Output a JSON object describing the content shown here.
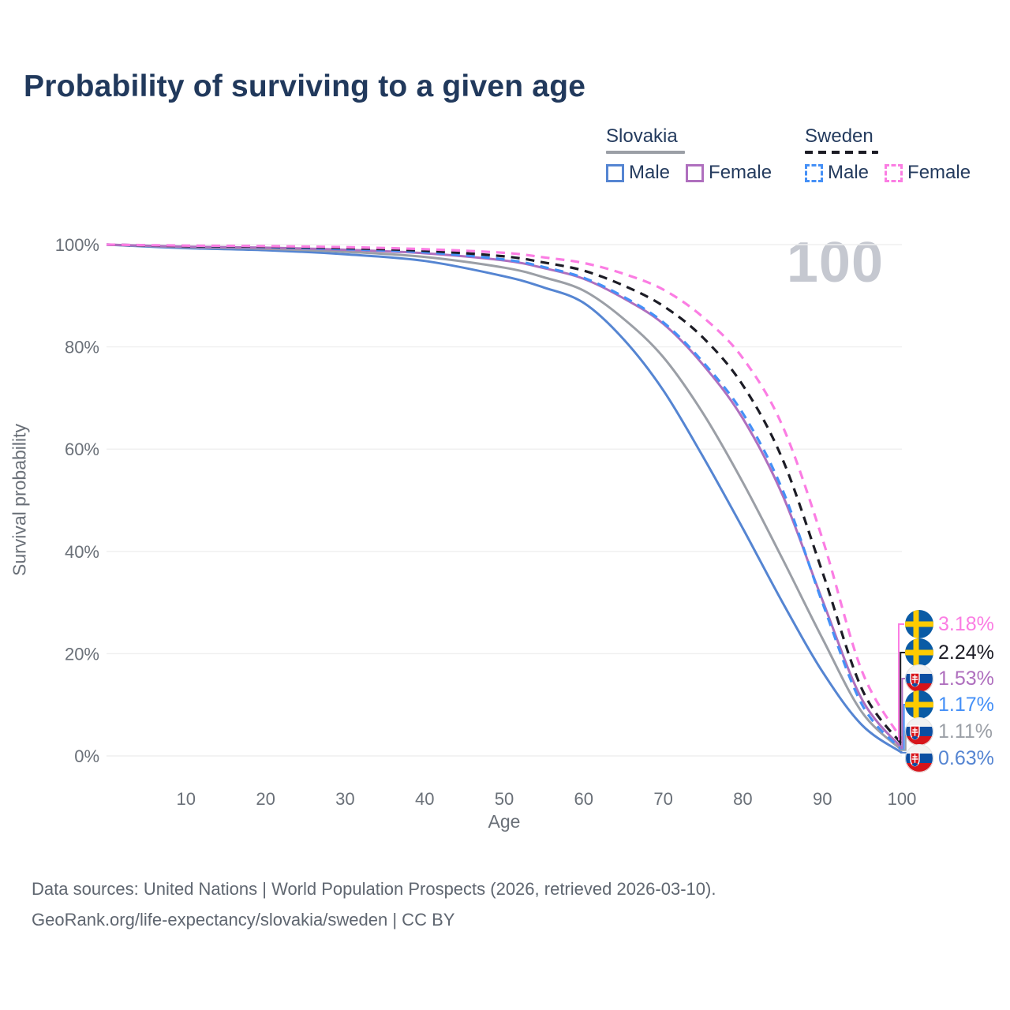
{
  "title": "Probability of surviving to a given age",
  "watermark": "100",
  "legend": {
    "groups": [
      {
        "country": "Slovakia",
        "underline": {
          "color": "#9B9FA6",
          "dashed": false
        },
        "items": [
          {
            "label": "Male",
            "color": "#5585D2",
            "dashed": false
          },
          {
            "label": "Female",
            "color": "#AF6FBE",
            "dashed": false
          }
        ]
      },
      {
        "country": "Sweden",
        "underline": {
          "color": "#1C1C25",
          "dashed": true
        },
        "items": [
          {
            "label": "Male",
            "color": "#4590F7",
            "dashed": true
          },
          {
            "label": "Female",
            "color": "#FB7DE3",
            "dashed": true
          }
        ]
      }
    ]
  },
  "chart_data": {
    "type": "line",
    "title": "Probability of surviving to a given age",
    "xlabel": "Age",
    "ylabel": "Survival probability",
    "xlim": [
      0,
      100
    ],
    "ylim": [
      0,
      100
    ],
    "grid": "horizontal",
    "x_ticks": [
      10,
      20,
      30,
      40,
      50,
      60,
      70,
      80,
      90,
      100
    ],
    "y_ticks": [
      0,
      20,
      40,
      60,
      80,
      100
    ],
    "y_tick_labels": [
      "0%",
      "20%",
      "40%",
      "60%",
      "80%",
      "100%"
    ],
    "x": [
      0,
      10,
      20,
      30,
      40,
      50,
      55,
      60,
      65,
      70,
      75,
      80,
      85,
      90,
      95,
      100
    ],
    "series": [
      {
        "key": "svk_male",
        "country": "Slovakia",
        "sex": "Male",
        "flag": "slovakia",
        "color": "#5585D2",
        "dashed": false,
        "values": [
          100,
          99.3,
          98.9,
          98.1,
          96.8,
          93.8,
          91.6,
          88.6,
          81.5,
          71.5,
          58.5,
          44.5,
          30.0,
          16.5,
          6.0,
          0.63
        ]
      },
      {
        "key": "svk_both",
        "country": "Slovakia",
        "sex": "Both",
        "flag": "slovakia",
        "color": "#9B9FA6",
        "dashed": false,
        "values": [
          100,
          99.5,
          99.2,
          98.6,
          97.6,
          95.5,
          93.6,
          91.0,
          85.5,
          78.0,
          67.0,
          53.5,
          38.5,
          23.0,
          8.5,
          1.11
        ]
      },
      {
        "key": "svk_female",
        "country": "Slovakia",
        "sex": "Female",
        "flag": "slovakia",
        "color": "#AF6FBE",
        "dashed": false,
        "values": [
          100,
          99.6,
          99.4,
          99.0,
          98.3,
          96.9,
          95.4,
          93.3,
          89.5,
          84.5,
          76.5,
          66.0,
          51.0,
          30.5,
          11.0,
          1.53
        ]
      },
      {
        "key": "swe_male",
        "country": "Sweden",
        "sex": "Male",
        "flag": "sweden",
        "color": "#4590F7",
        "dashed": true,
        "values": [
          100,
          99.7,
          99.5,
          99.1,
          98.5,
          97.1,
          95.6,
          93.5,
          89.8,
          84.8,
          77.0,
          67.0,
          52.0,
          30.0,
          10.0,
          1.17
        ]
      },
      {
        "key": "swe_both",
        "country": "Sweden",
        "sex": "Both",
        "flag": "sweden",
        "color": "#1C1C25",
        "dashed": true,
        "values": [
          100,
          99.7,
          99.6,
          99.3,
          98.8,
          97.7,
          96.5,
          94.9,
          92.0,
          88.0,
          81.8,
          72.5,
          58.0,
          36.0,
          13.0,
          2.24
        ]
      },
      {
        "key": "swe_female",
        "country": "Sweden",
        "sex": "Female",
        "flag": "sweden",
        "color": "#FB7DE3",
        "dashed": true,
        "values": [
          100,
          99.8,
          99.7,
          99.5,
          99.1,
          98.4,
          97.5,
          96.4,
          94.3,
          91.2,
          85.8,
          77.8,
          64.5,
          42.5,
          16.5,
          3.18
        ]
      }
    ],
    "end_labels": [
      {
        "series": "swe_female",
        "text": "3.18%"
      },
      {
        "series": "swe_both",
        "text": "2.24%"
      },
      {
        "series": "svk_female",
        "text": "1.53%"
      },
      {
        "series": "swe_male",
        "text": "1.17%"
      },
      {
        "series": "svk_both",
        "text": "1.11%"
      },
      {
        "series": "svk_male",
        "text": "0.63%"
      }
    ]
  },
  "footer": {
    "line1": "Data sources: United Nations | World Population Prospects (2026, retrieved 2026-03-10).",
    "line2": "GeoRank.org/life-expectancy/slovakia/sweden | CC BY"
  }
}
